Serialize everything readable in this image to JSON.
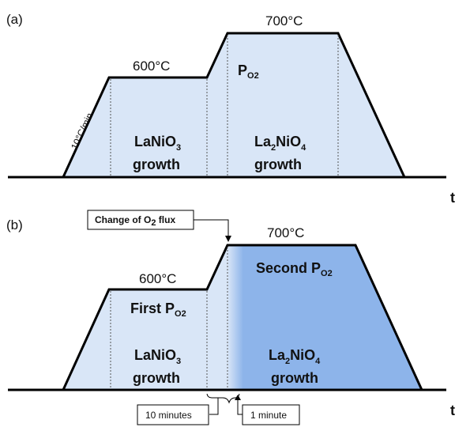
{
  "panel_a": {
    "label": "(a)",
    "ramp_rate": "10°C/min",
    "temp_low": "600°C",
    "temp_high": "700°C",
    "p_o2": {
      "main": "P",
      "sub": "O2"
    },
    "phase1": {
      "line1_main": "LaNiO",
      "line1_sub": "3",
      "line2": "growth"
    },
    "phase2": {
      "line1_a": "La",
      "line1_sub1": "2",
      "line1_b": "NiO",
      "line1_sub2": "4",
      "line2": "growth"
    },
    "axis_label": "t"
  },
  "panel_b": {
    "label": "(b)",
    "temp_low": "600°C",
    "temp_high": "700°C",
    "callout": {
      "main": "Change of O",
      "sub": "2",
      "tail": " flux"
    },
    "first_p_o2": {
      "main": "First P",
      "sub": "O2"
    },
    "second_p_o2": {
      "main": "Second P",
      "sub": "O2"
    },
    "phase1": {
      "line1_main": "LaNiO",
      "line1_sub": "3",
      "line2": "growth"
    },
    "phase2": {
      "line1_a": "La",
      "line1_sub1": "2",
      "line1_b": "NiO",
      "line1_sub2": "4",
      "line2": "growth"
    },
    "box_left": "10 minutes",
    "box_right": "1 minute",
    "axis_label": "t"
  },
  "colors": {
    "fill_light": "#d9e6f7",
    "fill_dark": "#8db4ea",
    "outline": "#000000"
  }
}
